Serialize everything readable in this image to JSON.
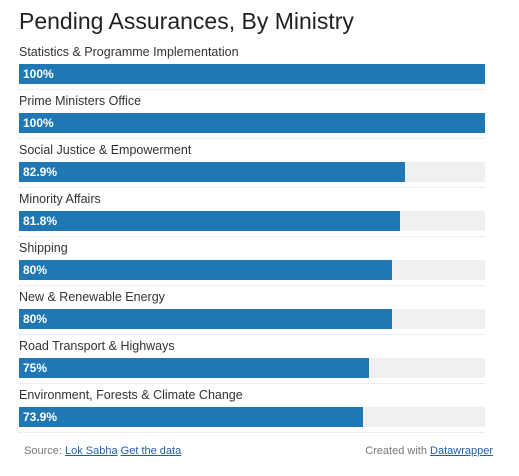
{
  "chart_data": {
    "type": "bar",
    "title": "Pending Assurances, By Ministry",
    "orientation": "horizontal",
    "categories": [
      "Statistics & Programme Implementation",
      "Prime Ministers Office",
      "Social Justice & Empowerment",
      "Minority Affairs",
      "Shipping",
      "New & Renewable Energy",
      "Road Transport & Highways",
      "Environment, Forests & Climate Change"
    ],
    "values": [
      100,
      100,
      82.9,
      81.8,
      80,
      80,
      75,
      73.9
    ],
    "value_labels": [
      "100%",
      "100%",
      "82.9%",
      "81.8%",
      "80%",
      "80%",
      "75%",
      "73.9%"
    ],
    "xlim": [
      0,
      100
    ],
    "colors": {
      "bar": "#1f77b4",
      "track": "#f0f0f0"
    }
  },
  "footer": {
    "source_label": "Source:",
    "source_link": "Lok Sabha",
    "data_link": "Get the data",
    "created_label": "Created with",
    "created_link": "Datawrapper"
  }
}
